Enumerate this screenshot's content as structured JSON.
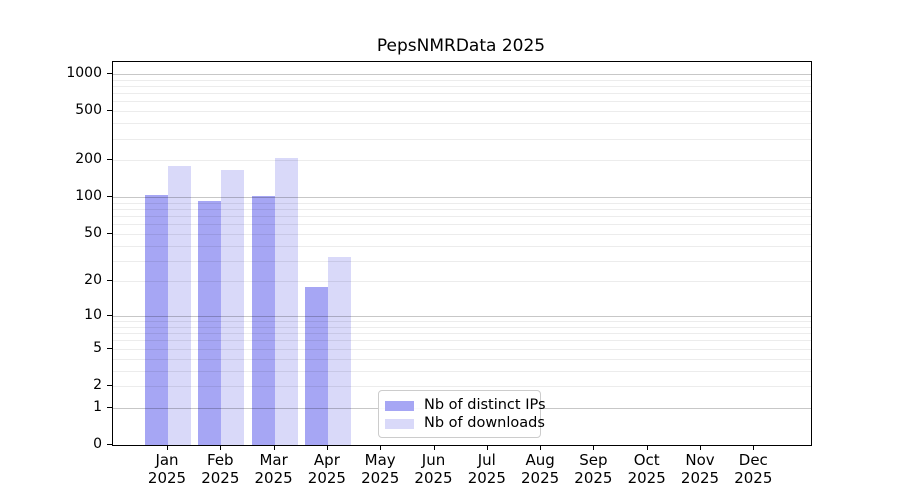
{
  "title": "PepsNMRData 2025",
  "chart_data": {
    "type": "bar",
    "title": "PepsNMRData 2025",
    "y_scale": "log1p",
    "xlabel": "",
    "ylabel": "",
    "categories": [
      {
        "month": "Jan",
        "year": "2025"
      },
      {
        "month": "Feb",
        "year": "2025"
      },
      {
        "month": "Mar",
        "year": "2025"
      },
      {
        "month": "Apr",
        "year": "2025"
      },
      {
        "month": "May",
        "year": "2025"
      },
      {
        "month": "Jun",
        "year": "2025"
      },
      {
        "month": "Jul",
        "year": "2025"
      },
      {
        "month": "Aug",
        "year": "2025"
      },
      {
        "month": "Sep",
        "year": "2025"
      },
      {
        "month": "Oct",
        "year": "2025"
      },
      {
        "month": "Nov",
        "year": "2025"
      },
      {
        "month": "Dec",
        "year": "2025"
      }
    ],
    "series": [
      {
        "name": "Nb of distinct IPs",
        "color": "#a6a6f4",
        "values": [
          105,
          93,
          102,
          18,
          0,
          0,
          0,
          0,
          0,
          0,
          0,
          0
        ]
      },
      {
        "name": "Nb of downloads",
        "color": "#d9d9f9",
        "values": [
          180,
          167,
          207,
          32,
          0,
          0,
          0,
          0,
          0,
          0,
          0,
          0
        ]
      }
    ],
    "yticks": [
      0,
      1,
      2,
      5,
      10,
      20,
      50,
      100,
      200,
      500,
      1000
    ],
    "ylim": [
      0,
      1250
    ],
    "grid": true,
    "grid_minor_color": "rgba(0,0,0,0.075)",
    "grid_major_color": "rgba(0,0,0,0.22)",
    "legend_position": "lower-center"
  }
}
